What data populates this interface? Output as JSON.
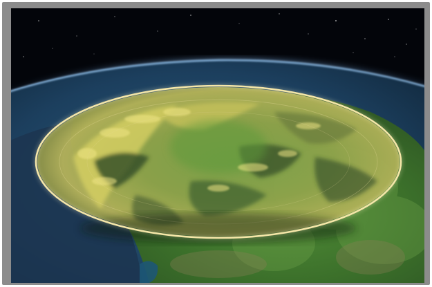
{
  "scene": {
    "subject": "",
    "colors": {
      "space": "#03050a",
      "atmosphere": "#5aa3e8",
      "ocean": "#1a3a57",
      "land_green": "#3f7a2c",
      "terrain_yellow": "#c7c35a",
      "ring": "#f2e3a0"
    },
    "icons": [
      "star-icon"
    ]
  }
}
